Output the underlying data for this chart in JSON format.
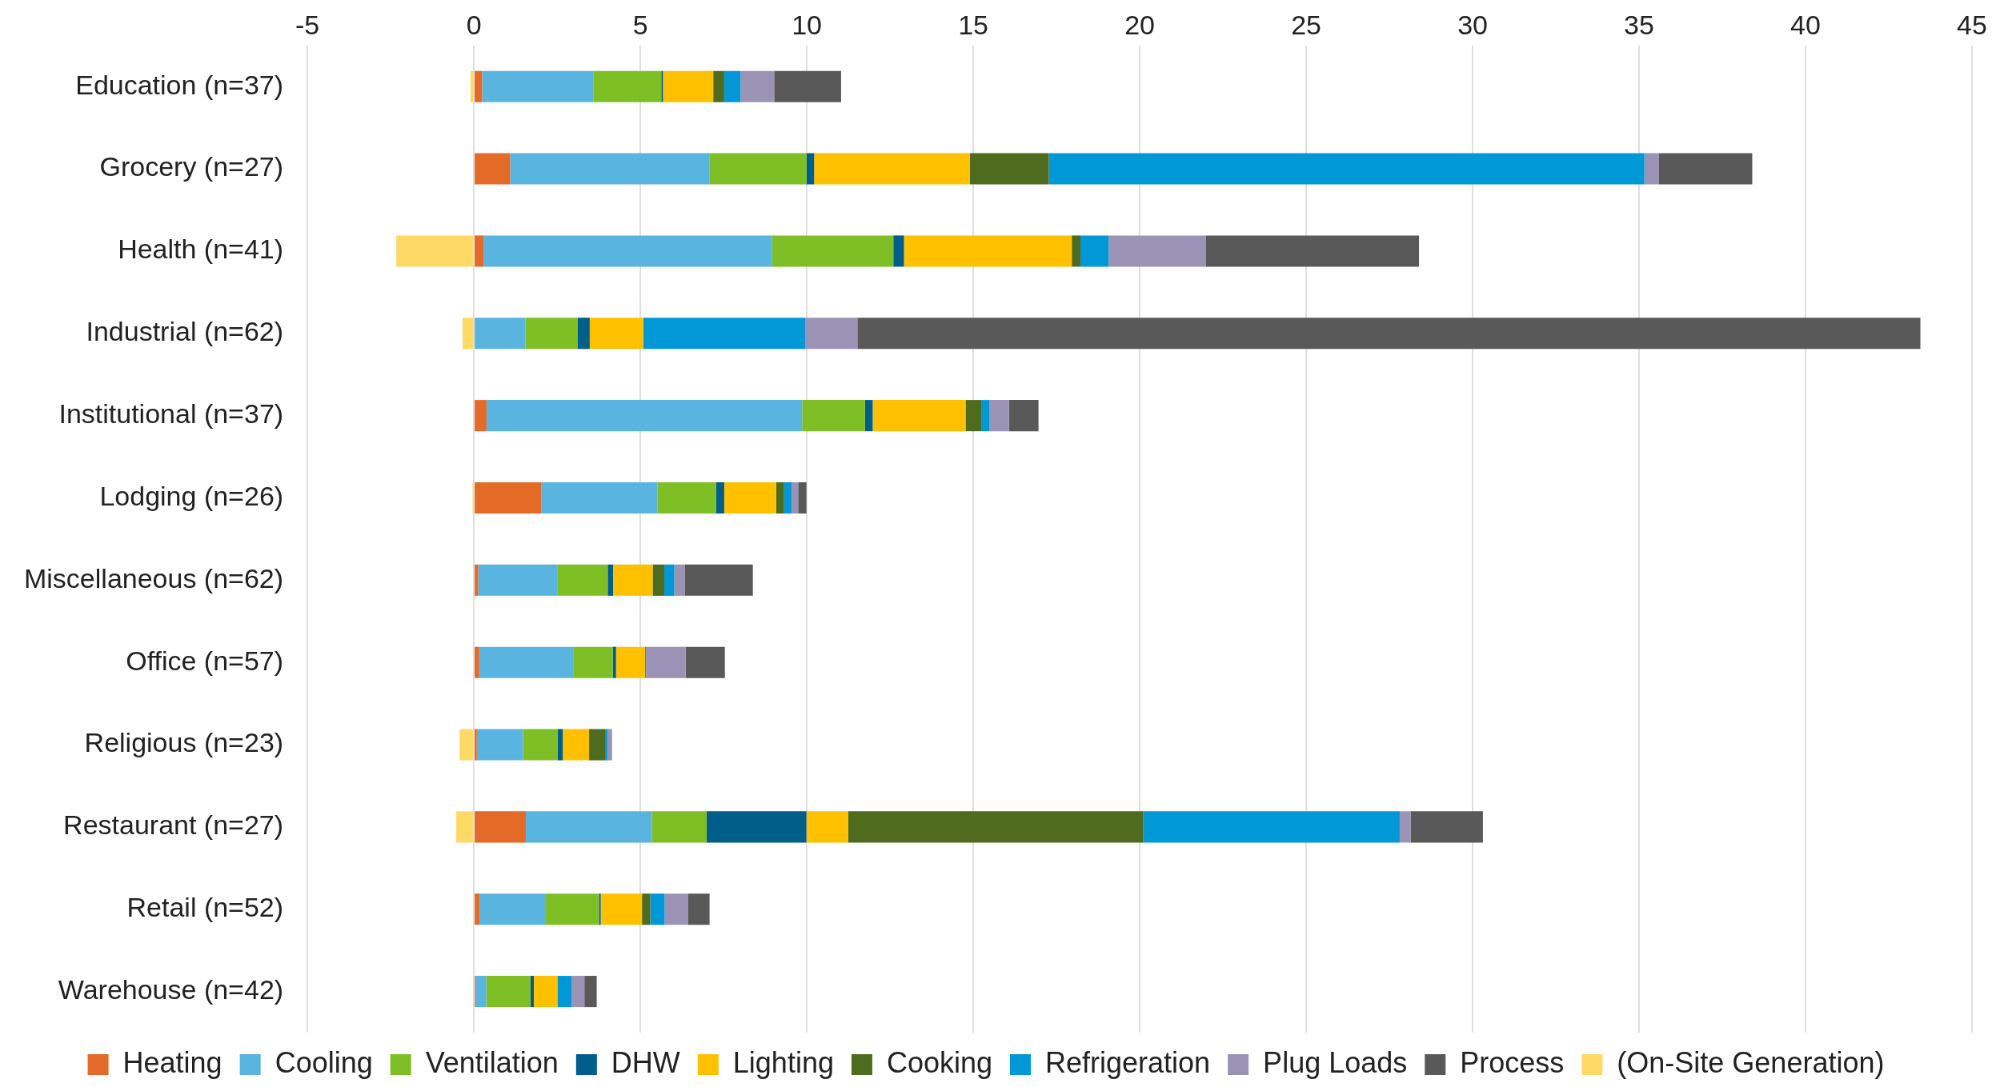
{
  "chart_data": {
    "type": "bar",
    "orientation": "horizontal",
    "stacked": true,
    "categories": [
      "Education (n=37)",
      "Grocery (n=27)",
      "Health (n=41)",
      "Industrial (n=62)",
      "Institutional (n=37)",
      "Lodging (n=26)",
      "Miscellaneous (n=62)",
      "Office (n=57)",
      "Religious (n=23)",
      "Restaurant (n=27)",
      "Retail (n=52)",
      "Warehouse (n=42)"
    ],
    "series": [
      {
        "name": "Heating",
        "color": "#e46a28",
        "values": [
          0.25,
          1.09,
          0.29,
          0,
          0.38,
          2.02,
          0.13,
          0.16,
          0.09,
          1.56,
          0.17,
          0.05
        ]
      },
      {
        "name": "Cooling",
        "color": "#5ab4e0",
        "values": [
          3.35,
          5.98,
          8.67,
          1.55,
          9.48,
          3.49,
          2.39,
          2.84,
          1.39,
          3.79,
          1.99,
          0.32
        ]
      },
      {
        "name": "Ventilation",
        "color": "#7fbf26",
        "values": [
          2.03,
          2.92,
          3.64,
          1.56,
          1.89,
          1.77,
          1.5,
          1.17,
          1.04,
          1.64,
          1.6,
          1.33
        ]
      },
      {
        "name": "DHW",
        "color": "#005e8a",
        "values": [
          0.05,
          0.23,
          0.32,
          0.37,
          0.23,
          0.24,
          0.16,
          0.1,
          0.15,
          3.0,
          0.05,
          0.1
        ]
      },
      {
        "name": "Lighting",
        "color": "#ffc000",
        "values": [
          1.51,
          4.68,
          5.04,
          1.61,
          2.79,
          1.56,
          1.19,
          0.87,
          0.79,
          1.25,
          1.24,
          0.71
        ]
      },
      {
        "name": "Cooking",
        "color": "#4e6b1e",
        "values": [
          0.33,
          2.37,
          0.26,
          0,
          0.47,
          0.24,
          0.35,
          0,
          0.48,
          8.87,
          0.25,
          0
        ]
      },
      {
        "name": "Refrigeration",
        "color": "#0098d6",
        "values": [
          0.49,
          17.89,
          0.85,
          4.86,
          0.24,
          0.22,
          0.3,
          0.03,
          0.07,
          7.7,
          0.43,
          0.42
        ]
      },
      {
        "name": "Plug Loads",
        "color": "#9b93b5",
        "values": [
          1.01,
          0.44,
          2.91,
          1.57,
          0.59,
          0.2,
          0.31,
          1.19,
          0.14,
          0.33,
          0.71,
          0.39
        ]
      },
      {
        "name": "Process",
        "color": "#595959",
        "values": [
          2.01,
          2.8,
          6.41,
          31.93,
          0.89,
          0.25,
          2.05,
          1.18,
          0,
          2.17,
          0.64,
          0.37
        ]
      },
      {
        "name": "(On-Site Generation)",
        "color": "#ffd966",
        "values": [
          -0.1,
          0,
          -2.33,
          -0.34,
          0,
          -0.04,
          0,
          0,
          -0.43,
          -0.53,
          0,
          0
        ]
      }
    ],
    "xlim": [
      -5,
      45
    ],
    "xticks": [
      -5,
      0,
      5,
      10,
      15,
      20,
      25,
      30,
      35,
      40,
      45
    ],
    "grid": "x",
    "legend": "bottom"
  }
}
